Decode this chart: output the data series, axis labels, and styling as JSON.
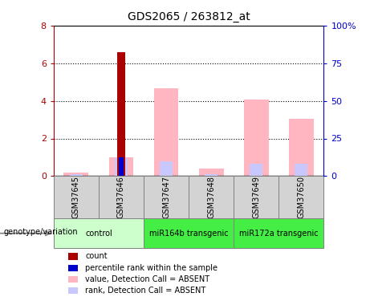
{
  "title": "GDS2065 / 263812_at",
  "samples": [
    "GSM37645",
    "GSM37646",
    "GSM37647",
    "GSM37648",
    "GSM37649",
    "GSM37650"
  ],
  "count_values": [
    0,
    6.6,
    0,
    0,
    0,
    0
  ],
  "percentile_rank_values": [
    0,
    1.0,
    0,
    0,
    0,
    0
  ],
  "value_absent": [
    0.2,
    1.0,
    4.65,
    0.4,
    4.05,
    3.05
  ],
  "rank_absent": [
    0.1,
    0.95,
    0.8,
    0.1,
    0.65,
    0.65
  ],
  "ylim": [
    0,
    8
  ],
  "y2lim": [
    0,
    100
  ],
  "yticks": [
    0,
    2,
    4,
    6,
    8
  ],
  "y2ticks": [
    0,
    25,
    50,
    75,
    100
  ],
  "count_color": "#AA0000",
  "percentile_color": "#0000CC",
  "value_absent_color": "#FFB6C1",
  "rank_absent_color": "#C8C8FF",
  "left_axis_color": "#AA0000",
  "right_axis_color": "#0000CC",
  "group_label_header": "genotype/variation",
  "group_defs": [
    {
      "label": "control",
      "start": 0,
      "end": 2,
      "color": "#CCFFCC"
    },
    {
      "label": "miR164b transgenic",
      "start": 2,
      "end": 4,
      "color": "#44EE44"
    },
    {
      "label": "miR172a transgenic",
      "start": 4,
      "end": 6,
      "color": "#44EE44"
    }
  ],
  "sample_box_color": "#D3D3D3",
  "legend_entries": [
    {
      "color": "#AA0000",
      "label": "count"
    },
    {
      "color": "#0000CC",
      "label": "percentile rank within the sample"
    },
    {
      "color": "#FFB6C1",
      "label": "value, Detection Call = ABSENT"
    },
    {
      "color": "#C8C8FF",
      "label": "rank, Detection Call = ABSENT"
    }
  ]
}
